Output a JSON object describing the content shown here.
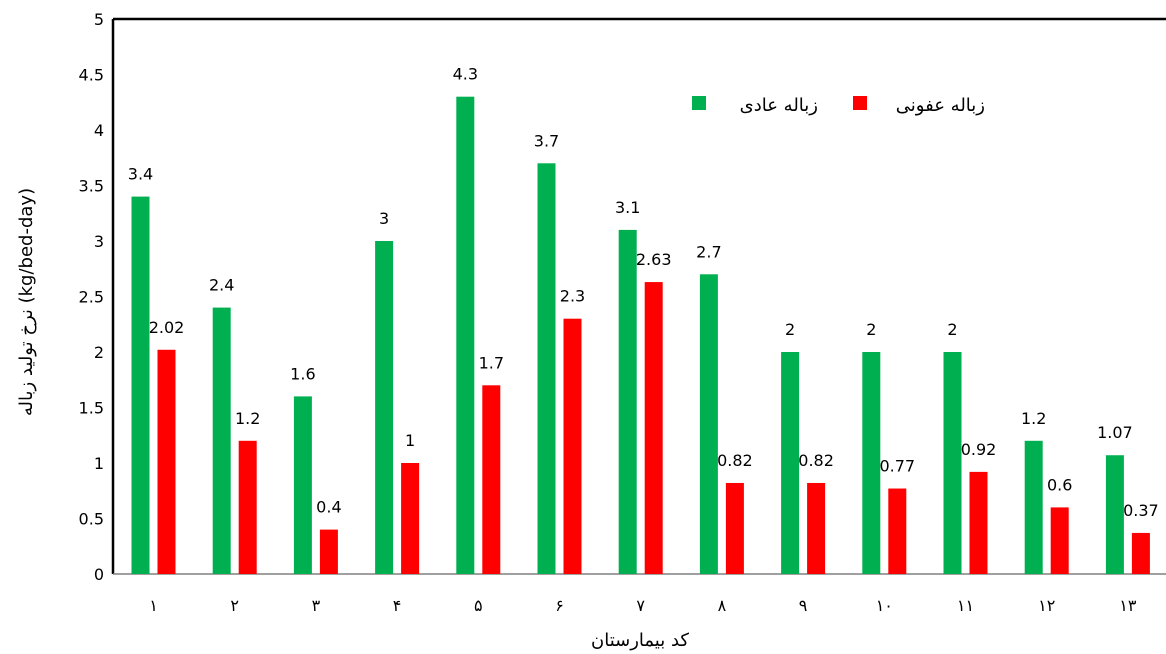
{
  "chart_data": {
    "type": "bar",
    "title": "",
    "xlabel": "کد بیمارستان",
    "ylabel": "نرخ تولید زباله (kg/bed-day)",
    "ylim": [
      0,
      5
    ],
    "yticks": [
      "0",
      "0.5",
      "1",
      "1.5",
      "2",
      "2.5",
      "3",
      "3.5",
      "4",
      "4.5",
      "5"
    ],
    "ytick_values": [
      0,
      0.5,
      1,
      1.5,
      2,
      2.5,
      3,
      3.5,
      4,
      4.5,
      5
    ],
    "grid": false,
    "legend_position": "top-right",
    "categories": [
      "۱",
      "۲",
      "۳",
      "۴",
      "۵",
      "۶",
      "۷",
      "۸",
      "۹",
      "۱۰",
      "۱۱",
      "۱۲",
      "۱۳"
    ],
    "series": [
      {
        "name": "زباله عادی",
        "color": "#00b050",
        "values": [
          3.4,
          2.4,
          1.6,
          3,
          4.3,
          3.7,
          3.1,
          2.7,
          2,
          2,
          2,
          1.2,
          1.07
        ],
        "labels": [
          "3.4",
          "2.4",
          "1.6",
          "3",
          "4.3",
          "3.7",
          "3.1",
          "2.7",
          "2",
          "2",
          "2",
          "1.2",
          "1.07"
        ]
      },
      {
        "name": "زباله عفونی",
        "color": "#ff0000",
        "values": [
          2.02,
          1.2,
          0.4,
          1,
          1.7,
          2.3,
          2.63,
          0.82,
          0.82,
          0.77,
          0.92,
          0.6,
          0.37
        ],
        "labels": [
          "2.02",
          "1.2",
          "0.4",
          "1",
          "1.7",
          "2.3",
          "2.63",
          "0.82",
          "0.82",
          "0.77",
          "0.92",
          "0.6",
          "0.37"
        ]
      }
    ]
  }
}
